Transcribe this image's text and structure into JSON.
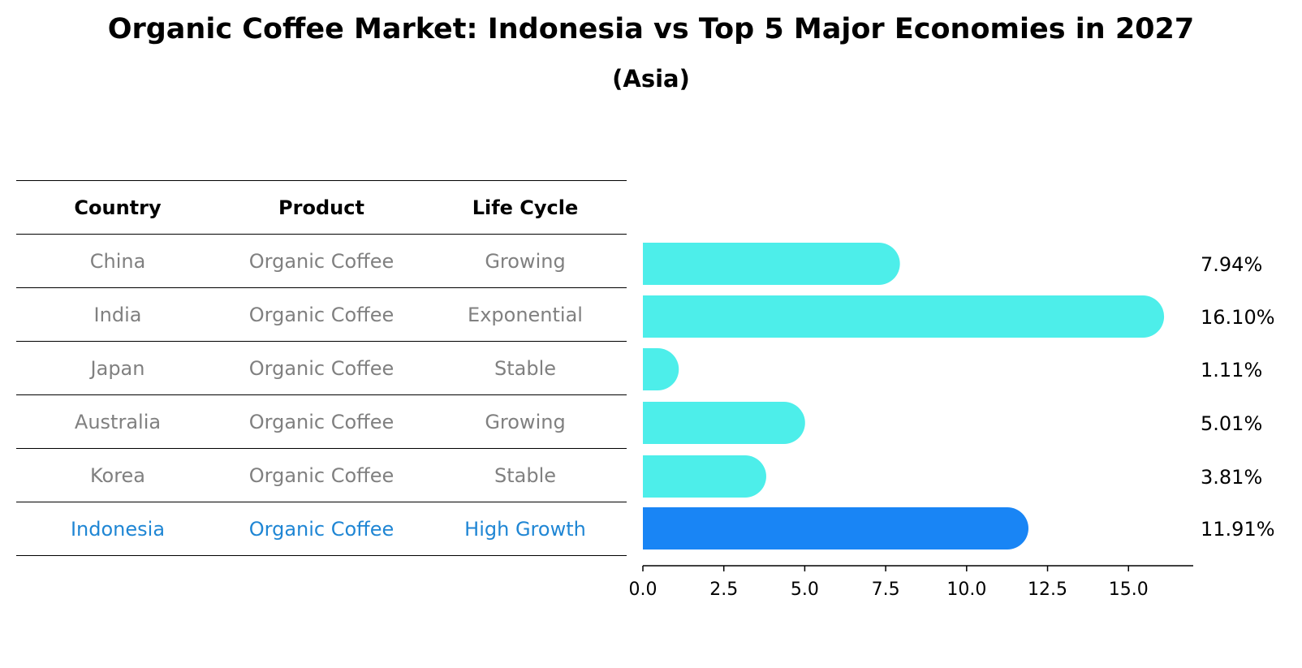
{
  "title": "Organic Coffee Market: Indonesia vs Top 5 Major Economies in 2027",
  "subtitle": "(Asia)",
  "table": {
    "headers": [
      "Country",
      "Product",
      "Life Cycle"
    ],
    "rows": [
      [
        "China",
        "Organic Coffee",
        "Growing"
      ],
      [
        "India",
        "Organic Coffee",
        "Exponential"
      ],
      [
        "Japan",
        "Organic Coffee",
        "Stable"
      ],
      [
        "Australia",
        "Organic Coffee",
        "Growing"
      ],
      [
        "Korea",
        "Organic Coffee",
        "Stable"
      ],
      [
        "Indonesia",
        "Organic Coffee",
        "High Growth"
      ]
    ],
    "highlight_color": "#1f86d4",
    "text_color": "#808080"
  },
  "chart_data": {
    "type": "bar",
    "orientation": "horizontal",
    "categories": [
      "China",
      "India",
      "Japan",
      "Australia",
      "Korea",
      "Indonesia"
    ],
    "values": [
      7.94,
      16.1,
      1.11,
      5.01,
      3.81,
      11.91
    ],
    "value_labels": [
      "7.94%",
      "16.10%",
      "1.11%",
      "5.01%",
      "3.81%",
      "11.91%"
    ],
    "xlim": [
      0,
      17
    ],
    "xticks": [
      0.0,
      2.5,
      5.0,
      7.5,
      10.0,
      12.5,
      15.0
    ],
    "xtick_labels": [
      "0.0",
      "2.5",
      "5.0",
      "7.5",
      "10.0",
      "12.5",
      "15.0"
    ],
    "bar_color": "#4deeea",
    "highlight_color": "#1985f5",
    "highlight_category": "Indonesia",
    "grid": false
  }
}
